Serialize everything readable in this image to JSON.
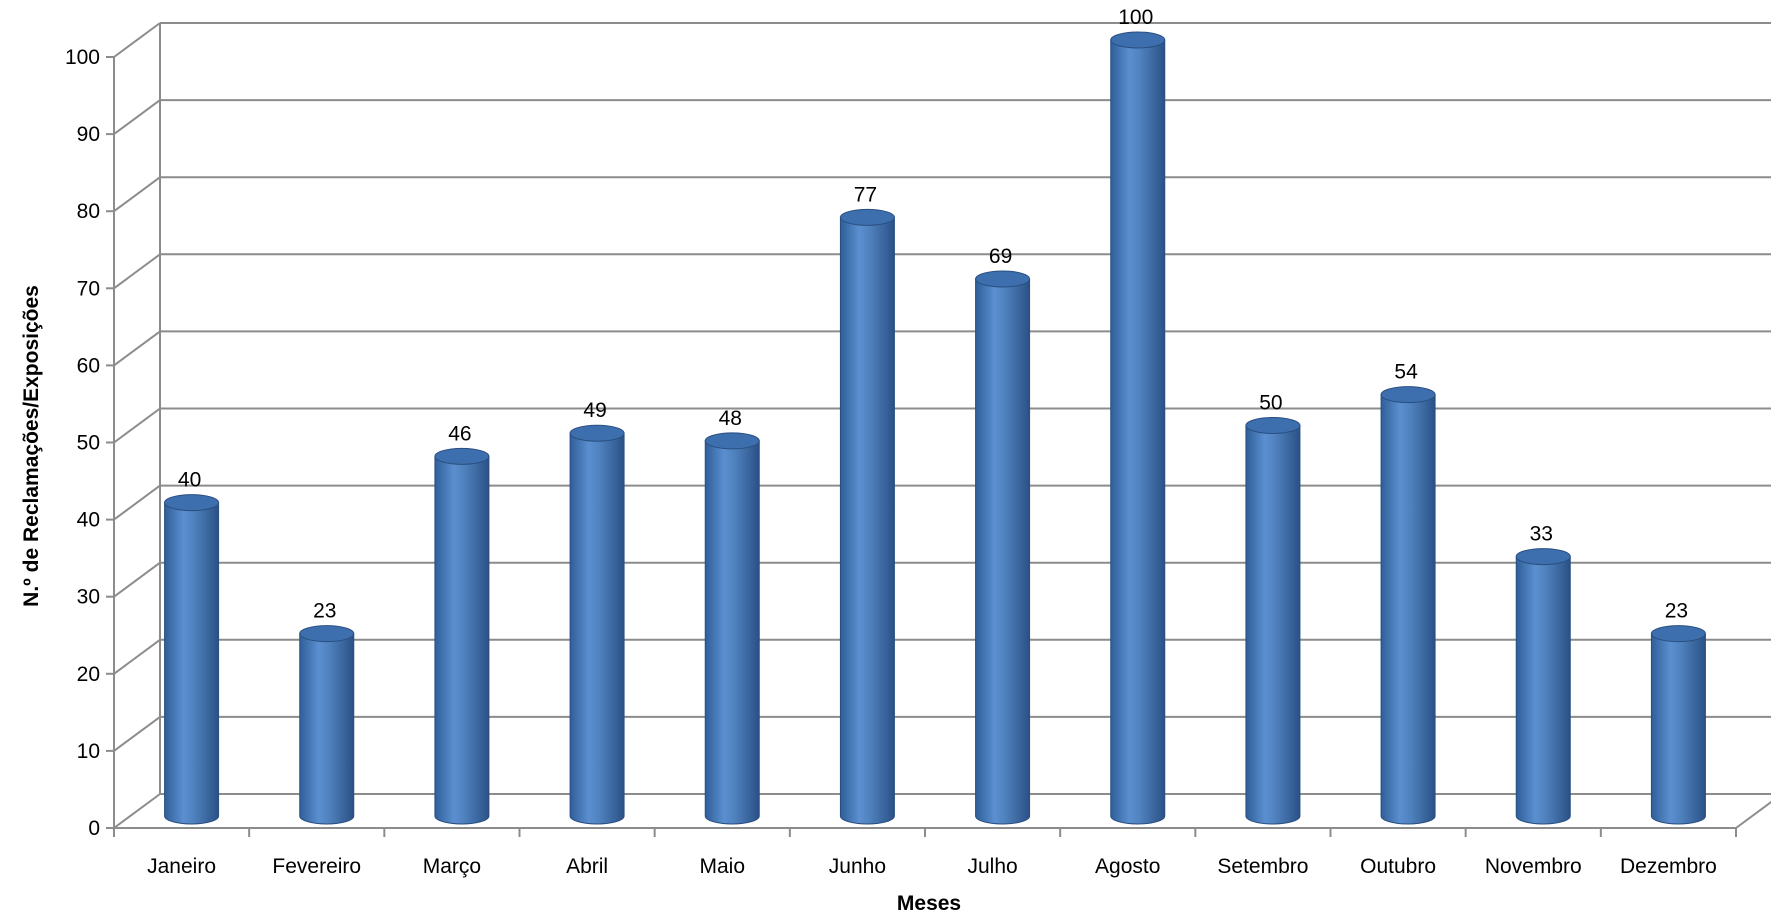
{
  "chart_data": {
    "type": "bar",
    "style": "3d-cylinder",
    "categories": [
      "Janeiro",
      "Fevereiro",
      "Março",
      "Abril",
      "Maio",
      "Junho",
      "Julho",
      "Agosto",
      "Setembro",
      "Outubro",
      "Novembro",
      "Dezembro"
    ],
    "values": [
      40,
      23,
      46,
      49,
      48,
      77,
      69,
      100,
      50,
      54,
      33,
      23
    ],
    "xlabel": "Meses",
    "ylabel": "N.º de Reclamações/Exposições",
    "ylim": [
      0,
      100
    ],
    "yticks": [
      0,
      10,
      20,
      30,
      40,
      50,
      60,
      70,
      80,
      90,
      100
    ],
    "grid": true,
    "data_labels": true,
    "legend": "none",
    "colors": {
      "bar": "#4f81bd",
      "bar_dark": "#2c5282",
      "bar_light": "#7aa6d9",
      "grid": "#8c8c8c"
    }
  }
}
